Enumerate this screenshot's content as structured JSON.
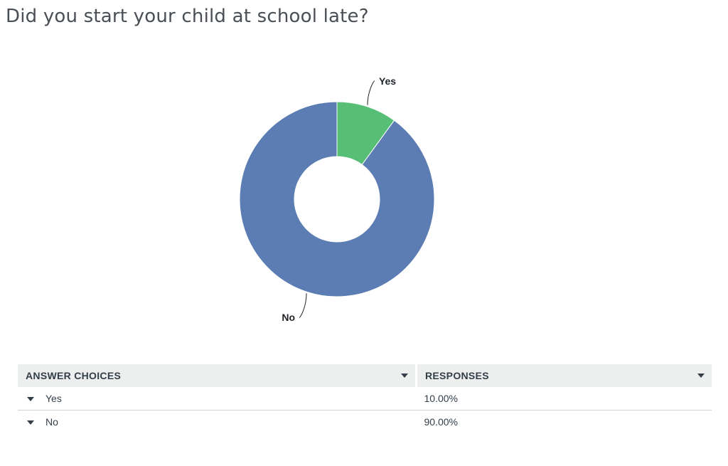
{
  "question": {
    "title": "Did you start your child at school late?"
  },
  "chart_data": {
    "type": "pie",
    "variant": "donut",
    "categories": [
      "Yes",
      "No"
    ],
    "values": [
      10.0,
      90.0
    ],
    "unit": "%",
    "colors": [
      "#57bf75",
      "#5b7db3"
    ],
    "labels": [
      "Yes",
      "No"
    ],
    "legend": "none",
    "title": ""
  },
  "table": {
    "headers": {
      "answer_choices": "ANSWER CHOICES",
      "responses": "RESPONSES"
    },
    "rows": [
      {
        "choice": "Yes",
        "response": "10.00%"
      },
      {
        "choice": "No",
        "response": "90.00%"
      }
    ]
  }
}
